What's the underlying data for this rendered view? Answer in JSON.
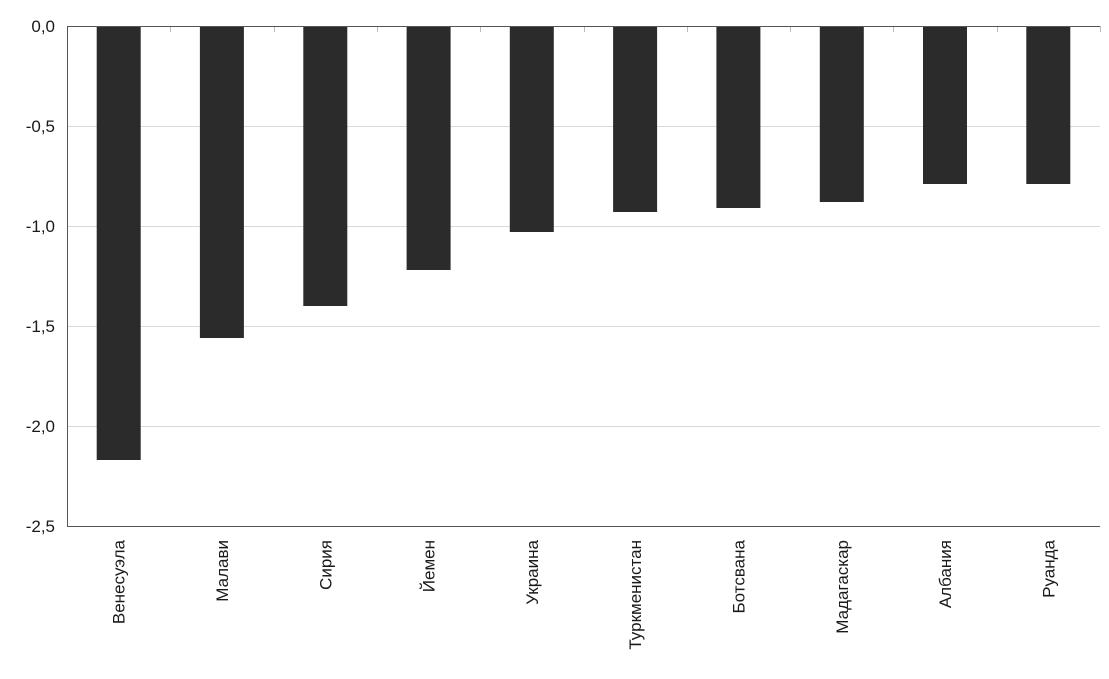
{
  "chart_data": {
    "type": "bar",
    "categories": [
      "Венесуэла",
      "Малави",
      "Сирия",
      "Йемен",
      "Украина",
      "Туркменистан",
      "Ботсвана",
      "Мадагаскар",
      "Албания",
      "Руанда"
    ],
    "values": [
      -2.17,
      -1.56,
      -1.4,
      -1.22,
      -1.03,
      -0.93,
      -0.91,
      -0.88,
      -0.79,
      -0.79
    ],
    "title": "",
    "xlabel": "",
    "ylabel": "",
    "ylim": [
      -2.5,
      0
    ],
    "yticks": [
      "0,0",
      "-0,5",
      "-1,0",
      "-1,5",
      "-2,0",
      "-2,5"
    ],
    "ytick_values": [
      0,
      -0.5,
      -1.0,
      -1.5,
      -2.0,
      -2.5
    ],
    "grid": true,
    "legend": "none",
    "bar_color": "#2b2b2b",
    "grid_color": "#d9d9d9"
  }
}
